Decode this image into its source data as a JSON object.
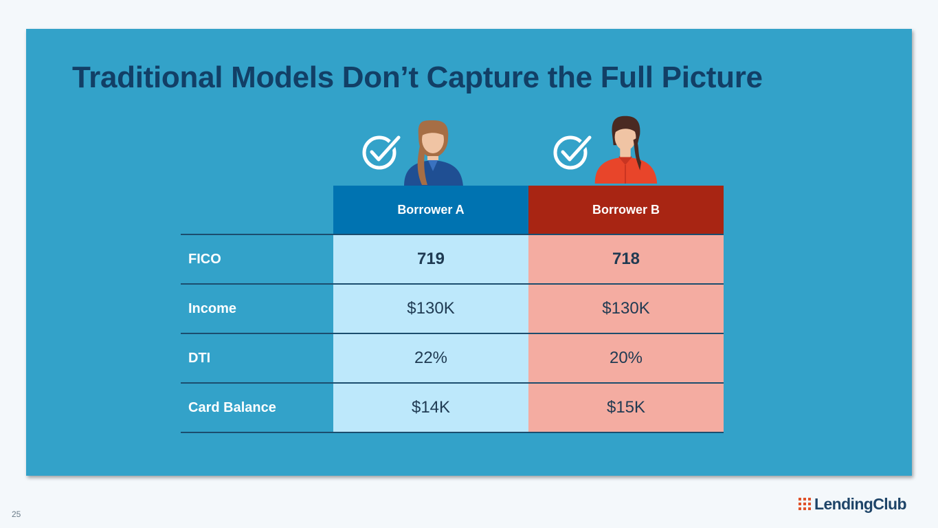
{
  "slide": {
    "title": "Traditional Models Don’t Capture the Full Picture",
    "page_number": "25"
  },
  "table": {
    "columns": [
      "Borrower A",
      "Borrower B"
    ],
    "rows": [
      {
        "label": "FICO",
        "a": "719",
        "b": "718"
      },
      {
        "label": "Income",
        "a": "$130K",
        "b": "$130K"
      },
      {
        "label": "DTI",
        "a": "22%",
        "b": "20%"
      },
      {
        "label": "Card Balance",
        "a": "$14K",
        "b": "$15K"
      }
    ]
  },
  "brand": {
    "name": "LendingClub"
  },
  "colors": {
    "panel": "#33a2c9",
    "title": "#123f66",
    "borrower_a": "#0073b1",
    "borrower_b": "#a82513",
    "cell_a": "#bde8fb",
    "cell_b": "#f4aca1"
  },
  "icons": [
    "checkmark-circle-icon",
    "woman-avatar-icon",
    "logo-grid-icon"
  ]
}
